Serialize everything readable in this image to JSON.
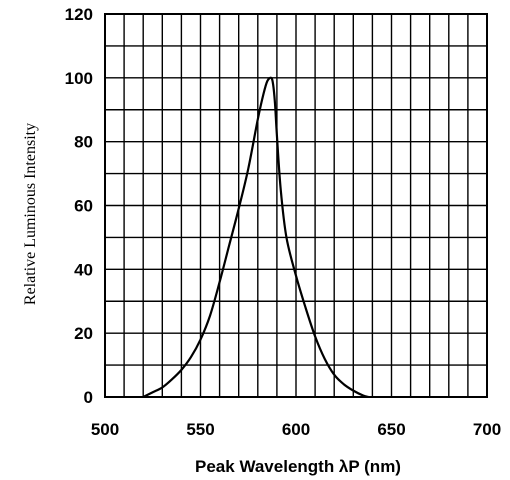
{
  "chart_data": {
    "type": "line",
    "title": "",
    "xlabel": "Peak Wavelength  λP (nm)",
    "ylabel": "Relative Luminous Intensity",
    "xlim": [
      500,
      700
    ],
    "ylim": [
      0,
      120
    ],
    "x_ticks": [
      "500",
      "550",
      "600",
      "650",
      "700"
    ],
    "y_ticks": [
      "0",
      "20",
      "40",
      "60",
      "80",
      "100",
      "120"
    ],
    "grid": true,
    "x_grid_step": 10,
    "y_grid_step": 10,
    "legend": "none",
    "series": [
      {
        "x": [
          520,
          525,
          530,
          535,
          540,
          545,
          550,
          555,
          560,
          565,
          570,
          575,
          580,
          583,
          585,
          587,
          588,
          589,
          590,
          592,
          595,
          600,
          605,
          610,
          615,
          620,
          625,
          630,
          635,
          638
        ],
        "y": [
          0,
          1.5,
          3,
          5.5,
          8.5,
          12.5,
          18,
          25.5,
          36,
          47.5,
          59,
          71.5,
          87,
          95,
          99,
          100,
          98,
          92,
          82,
          65,
          50,
          38,
          28,
          19,
          12,
          7,
          4,
          2,
          0.5,
          0
        ]
      }
    ]
  }
}
